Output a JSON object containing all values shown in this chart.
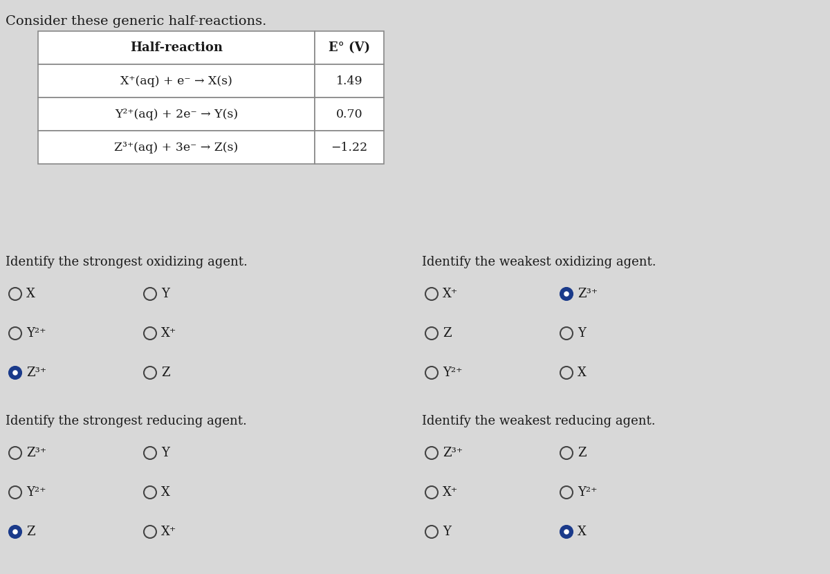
{
  "title": "Consider these generic half-reactions.",
  "table_header": [
    "Half-reaction",
    "E° (V)"
  ],
  "table_rows": [
    [
      "X⁺(aq) + e⁻ → X(s)",
      "1.49"
    ],
    [
      "Y²⁺(aq) + 2e⁻ → Y(s)",
      "0.70"
    ],
    [
      "Z³⁺(aq) + 3e⁻ → Z(s)",
      "−1.22"
    ]
  ],
  "section1_title": "Identify the strongest oxidizing agent.",
  "section1_options": [
    [
      "X",
      "Y"
    ],
    [
      "Y²⁺",
      "X⁺"
    ],
    [
      "Z³⁺",
      "Z"
    ]
  ],
  "section1_filled": [
    [
      2,
      0
    ]
  ],
  "section2_title": "Identify the weakest oxidizing agent.",
  "section2_options": [
    [
      "X⁺",
      "Z³⁺"
    ],
    [
      "Z",
      "Y"
    ],
    [
      "Y²⁺",
      "X"
    ]
  ],
  "section2_filled": [
    [
      0,
      1
    ]
  ],
  "section3_title": "Identify the strongest reducing agent.",
  "section3_options": [
    [
      "Z³⁺",
      "Y"
    ],
    [
      "Y²⁺",
      "X"
    ],
    [
      "Z",
      "X⁺"
    ]
  ],
  "section3_filled": [
    [
      2,
      0
    ]
  ],
  "section4_title": "Identify the weakest reducing agent.",
  "section4_options": [
    [
      "Z³⁺",
      "Z"
    ],
    [
      "X⁺",
      "Y²⁺"
    ],
    [
      "Y",
      "X"
    ]
  ],
  "section4_filled": [
    [
      2,
      1
    ]
  ],
  "bg_color": "#d8d8d8",
  "table_bg": "#ffffff",
  "text_color": "#1a1a1a",
  "circle_color": "#444444",
  "filled_color": "#1a3a8a"
}
